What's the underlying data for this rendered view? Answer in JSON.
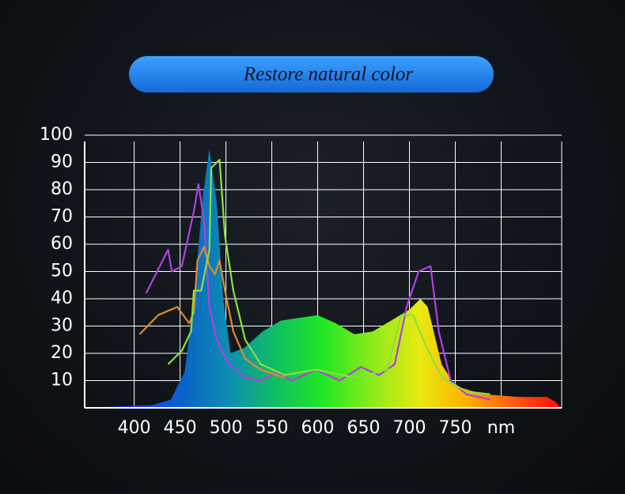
{
  "chart_data": {
    "type": "line",
    "title": "Restore natural color",
    "xlim": [
      346,
      866
    ],
    "ylim": [
      0,
      100
    ],
    "xticks": [
      400,
      450,
      500,
      550,
      600,
      650,
      700,
      750,
      {
        "value": 800,
        "label": "nm"
      }
    ],
    "yticks": [
      10,
      20,
      30,
      40,
      50,
      60,
      70,
      80,
      90,
      100
    ],
    "grid": true,
    "series": [
      {
        "type": "area",
        "colors": [
          "#1a22c8",
          "#1d3bff",
          "#0a63c8",
          "#0c8fb0",
          "#10c060",
          "#22e822",
          "#8aeb1a",
          "#e8ea10",
          "#ffb000",
          "#ff5a10",
          "#ff0a0a"
        ],
        "x": [
          350,
          380,
          420,
          440,
          450,
          455,
          465,
          475,
          482,
          490,
          497,
          505,
          520,
          540,
          560,
          580,
          600,
          620,
          640,
          660,
          680,
          700,
          712,
          720,
          735,
          750,
          780,
          820,
          850,
          860,
          865
        ],
        "values": [
          0,
          0.5,
          1,
          3,
          10,
          13,
          40,
          78,
          95,
          75,
          40,
          20,
          22,
          28,
          32,
          33,
          34,
          31,
          27,
          28,
          32,
          36,
          40,
          37,
          16,
          8,
          5,
          4,
          4,
          2,
          0
        ]
      },
      {
        "type": "line",
        "color": "#b040e0",
        "x": [
          413,
          437,
          441,
          452,
          465,
          470,
          476,
          482,
          490,
          503,
          521,
          538,
          555,
          572,
          598,
          624,
          647,
          667,
          684,
          697,
          710,
          723,
          732,
          745,
          762,
          788
        ],
        "values": [
          42,
          58,
          50,
          52,
          72,
          82,
          69,
          37,
          25,
          16,
          11,
          10,
          13,
          10,
          14,
          10,
          15,
          12,
          16,
          37,
          50,
          52,
          28,
          10,
          5,
          3
        ]
      },
      {
        "type": "line",
        "color": "#e08a30",
        "x": [
          406,
          426,
          447,
          460,
          465,
          469,
          476,
          482,
          488,
          493,
          499,
          508,
          521,
          538,
          564
        ],
        "values": [
          27,
          34,
          37,
          31,
          35,
          54,
          59,
          52,
          49,
          54,
          43,
          28,
          18,
          14,
          11
        ]
      },
      {
        "type": "line",
        "color": "#8ae040",
        "x": [
          437,
          452,
          462,
          465,
          473,
          482,
          484,
          493,
          499,
          508,
          521,
          538,
          564,
          598,
          641,
          676,
          691,
          704,
          719,
          736,
          762,
          788
        ],
        "values": [
          16,
          21,
          28,
          43,
          43,
          58,
          88,
          91,
          63,
          43,
          25,
          16,
          12,
          14,
          11,
          14,
          34,
          34,
          22,
          11,
          6,
          5
        ]
      }
    ]
  }
}
